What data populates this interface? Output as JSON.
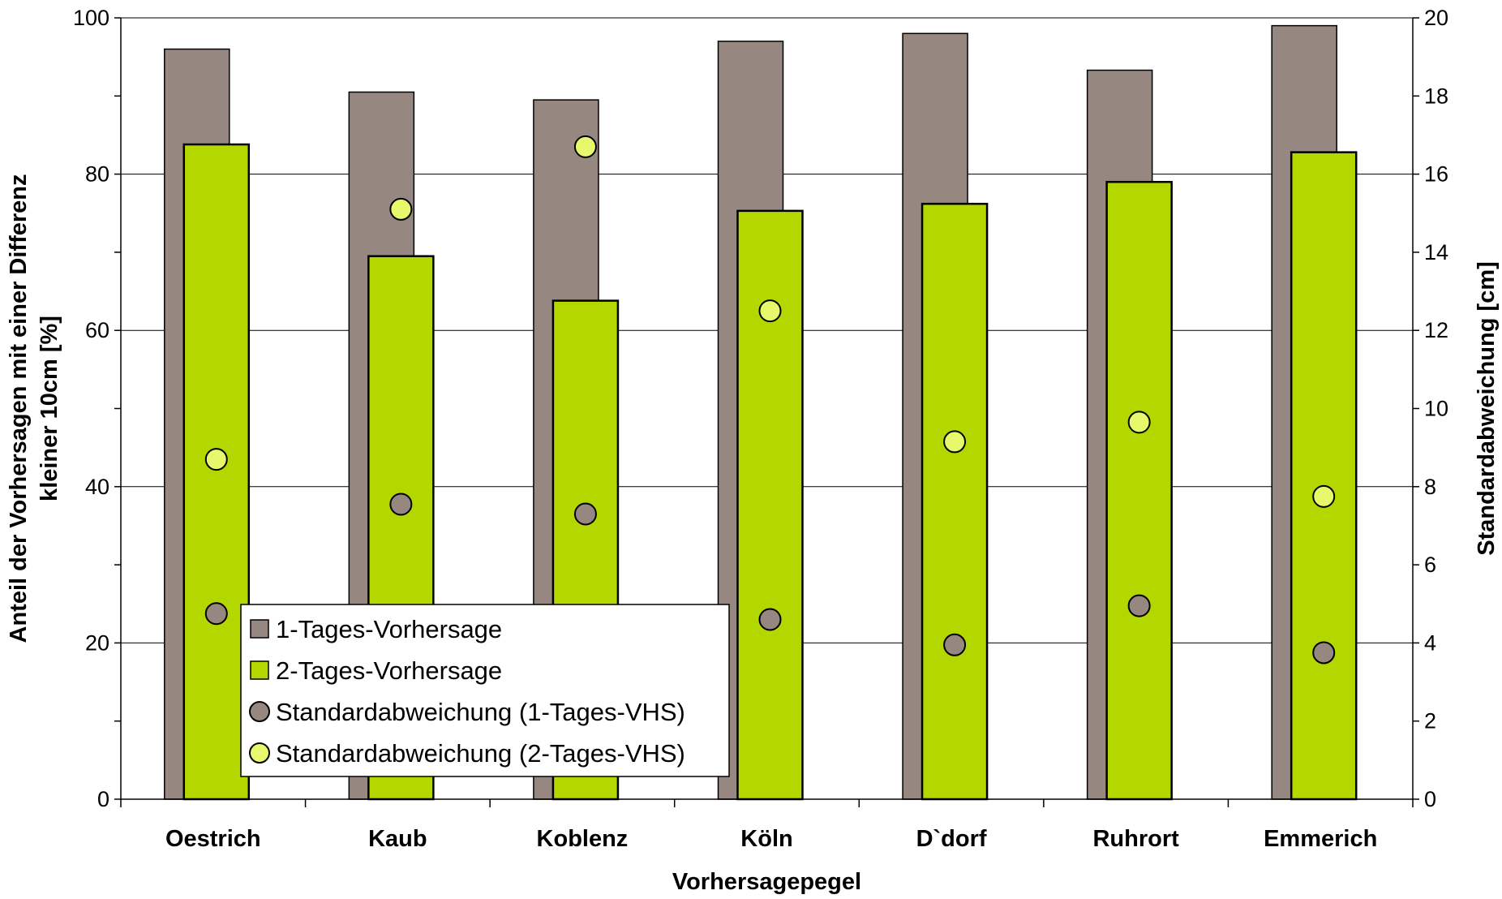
{
  "chart_data": {
    "type": "bar",
    "xlabel": "Vorhersagepegel",
    "ylabel_lines": [
      "Anteil der Vorhersagen mit einer Differenz",
      "kleiner 10cm [%]"
    ],
    "y2label": "Standardabweichung [cm]",
    "ylim": [
      0,
      100
    ],
    "y2lim": [
      0,
      20
    ],
    "yticks": [
      "0",
      "20",
      "40",
      "60",
      "80",
      "100"
    ],
    "y2ticks": [
      "0",
      "2",
      "4",
      "6",
      "8",
      "10",
      "12",
      "14",
      "16",
      "18",
      "20"
    ],
    "grid": true,
    "legend_position": "bottom-left",
    "categories": [
      "Oestrich",
      "Kaub",
      "Koblenz",
      "Köln",
      "D`dorf",
      "Ruhrort",
      "Emmerich"
    ],
    "series": [
      {
        "name": "1-Tages-Vorhersage",
        "kind": "bar",
        "axis": "left",
        "color": "#968780",
        "values": [
          96,
          90.5,
          89.5,
          97,
          98,
          93.3,
          99
        ]
      },
      {
        "name": "2-Tages-Vorhersage",
        "kind": "bar",
        "axis": "left",
        "color": "#b4d700",
        "values": [
          83.8,
          69.5,
          63.8,
          75.3,
          76.2,
          79,
          82.8
        ]
      },
      {
        "name": "Standardabweichung (1-Tages-VHS)",
        "kind": "point",
        "axis": "right",
        "color": "#968780",
        "values": [
          4.75,
          7.55,
          7.3,
          4.6,
          3.95,
          4.95,
          3.75
        ]
      },
      {
        "name": "Standardabweichung (2-Tages-VHS)",
        "kind": "point",
        "axis": "right",
        "color": "#e8f86c",
        "values": [
          8.7,
          15.1,
          16.7,
          12.5,
          9.15,
          9.65,
          7.75
        ]
      }
    ]
  }
}
